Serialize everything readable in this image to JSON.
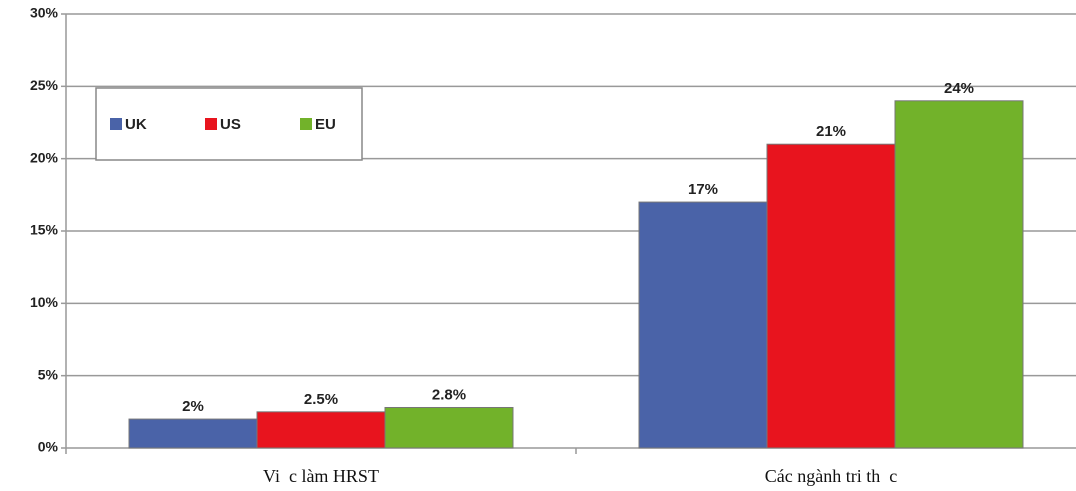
{
  "chart_data": {
    "type": "bar",
    "categories": [
      "Vi  c làm HRST",
      "Các ngành tri th  c"
    ],
    "series": [
      {
        "name": "UK",
        "color": "#4a63a8",
        "values": [
          2,
          17
        ],
        "value_labels": [
          "2%",
          "17%"
        ]
      },
      {
        "name": "US",
        "color": "#e8141e",
        "values": [
          2.5,
          21
        ],
        "value_labels": [
          "2.5%",
          "21%"
        ]
      },
      {
        "name": "EU",
        "color": "#72b22a",
        "values": [
          2.8,
          24
        ],
        "value_labels": [
          "2.8%",
          "24%"
        ]
      }
    ],
    "ylim": [
      0,
      30
    ],
    "yticks": [
      {
        "value": 0,
        "label": "0%"
      },
      {
        "value": 5,
        "label": "5%"
      },
      {
        "value": 10,
        "label": "10%"
      },
      {
        "value": 15,
        "label": "15%"
      },
      {
        "value": 20,
        "label": "20%"
      },
      {
        "value": 25,
        "label": "25%"
      },
      {
        "value": 30,
        "label": "30%"
      }
    ],
    "grid": true,
    "legend": "upper left"
  }
}
